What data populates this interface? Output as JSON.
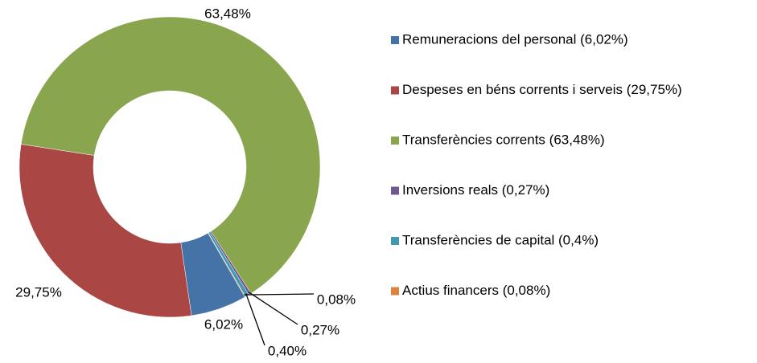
{
  "chart_data": {
    "type": "donut",
    "categories": [
      "Remuneracions del personal (6,02%)",
      "Despeses en béns corrents i serveis (29,75%)",
      "Transferències corrents (63,48%)",
      "Inversions reals (0,27%)",
      "Transferències de capital (0,4%)",
      "Actius financers (0,08%)"
    ],
    "values": [
      6.02,
      29.75,
      63.48,
      0.27,
      0.4,
      0.08
    ],
    "value_labels": [
      "6,02%",
      "29,75%",
      "63,48%",
      "0,27%",
      "0,40%",
      "0,08%"
    ],
    "colors": [
      "#4572a7",
      "#aa4643",
      "#89a54e",
      "#71588f",
      "#4198af",
      "#db843d"
    ],
    "legend": "right"
  }
}
